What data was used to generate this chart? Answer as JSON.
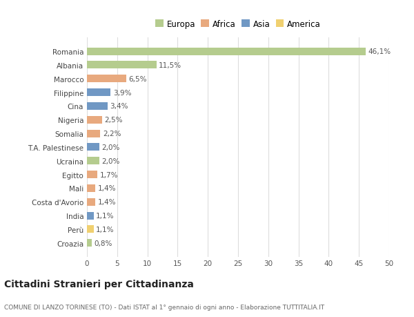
{
  "categories": [
    "Romania",
    "Albania",
    "Marocco",
    "Filippine",
    "Cina",
    "Nigeria",
    "Somalia",
    "T.A. Palestinese",
    "Ucraina",
    "Egitto",
    "Mali",
    "Costa d'Avorio",
    "India",
    "Perù",
    "Croazia"
  ],
  "values": [
    46.1,
    11.5,
    6.5,
    3.9,
    3.4,
    2.5,
    2.2,
    2.0,
    2.0,
    1.7,
    1.4,
    1.4,
    1.1,
    1.1,
    0.8
  ],
  "labels": [
    "46,1%",
    "11,5%",
    "6,5%",
    "3,9%",
    "3,4%",
    "2,5%",
    "2,2%",
    "2,0%",
    "2,0%",
    "1,7%",
    "1,4%",
    "1,4%",
    "1,1%",
    "1,1%",
    "0,8%"
  ],
  "continents": [
    "Europa",
    "Europa",
    "Africa",
    "Asia",
    "Asia",
    "Africa",
    "Africa",
    "Asia",
    "Europa",
    "Africa",
    "Africa",
    "Africa",
    "Asia",
    "America",
    "Europa"
  ],
  "colors": {
    "Europa": "#b5cc8e",
    "Africa": "#e8a97e",
    "Asia": "#7098c4",
    "America": "#f0d070"
  },
  "xlim": [
    0,
    50
  ],
  "xticks": [
    0,
    5,
    10,
    15,
    20,
    25,
    30,
    35,
    40,
    45,
    50
  ],
  "title": "Cittadini Stranieri per Cittadinanza",
  "subtitle": "COMUNE DI LANZO TORINESE (TO) - Dati ISTAT al 1° gennaio di ogni anno - Elaborazione TUTTITALIA.IT",
  "background_color": "#ffffff",
  "grid_color": "#dddddd",
  "bar_height": 0.55,
  "label_fontsize": 7.5,
  "tick_fontsize": 7.5,
  "title_fontsize": 10,
  "subtitle_fontsize": 6.5,
  "legend_entries": [
    "Europa",
    "Africa",
    "Asia",
    "America"
  ]
}
